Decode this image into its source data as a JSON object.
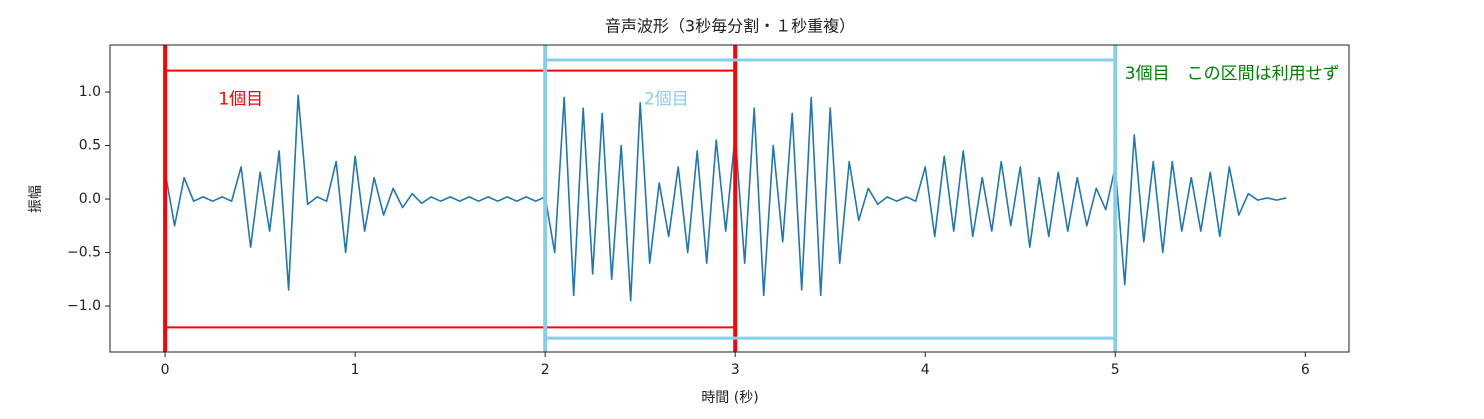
{
  "chart_data": {
    "type": "line",
    "title": "音声波形（3秒毎分割・１秒重複）",
    "x_label": "時間 (秒)",
    "y_label": "振幅",
    "x": [
      0,
      0.05,
      0.1,
      0.15,
      0.2,
      0.25,
      0.3,
      0.35,
      0.4,
      0.45,
      0.5,
      0.55,
      0.6,
      0.65,
      0.7,
      0.75,
      0.8,
      0.85,
      0.9,
      0.95,
      1,
      1.05,
      1.1,
      1.15,
      1.2,
      1.25,
      1.3,
      1.35,
      1.4,
      1.45,
      1.5,
      1.55,
      1.6,
      1.65,
      1.7,
      1.75,
      1.8,
      1.85,
      1.9,
      1.95,
      2,
      2.05,
      2.1,
      2.15,
      2.2,
      2.25,
      2.3,
      2.35,
      2.4,
      2.45,
      2.5,
      2.55,
      2.6,
      2.65,
      2.7,
      2.75,
      2.8,
      2.85,
      2.9,
      2.95,
      3,
      3.05,
      3.1,
      3.15,
      3.2,
      3.25,
      3.3,
      3.35,
      3.4,
      3.45,
      3.5,
      3.55,
      3.6,
      3.65,
      3.7,
      3.75,
      3.8,
      3.85,
      3.9,
      3.95,
      4,
      4.05,
      4.1,
      4.15,
      4.2,
      4.25,
      4.3,
      4.35,
      4.4,
      4.45,
      4.5,
      4.55,
      4.6,
      4.65,
      4.7,
      4.75,
      4.8,
      4.85,
      4.9,
      4.95,
      5,
      5.05,
      5.1,
      5.15,
      5.2,
      5.25,
      5.3,
      5.35,
      5.4,
      5.45,
      5.5,
      5.55,
      5.6,
      5.65,
      5.7,
      5.75,
      5.8,
      5.85,
      5.9
    ],
    "values": [
      0.25,
      -0.25,
      0.2,
      -0.02,
      0.02,
      -0.02,
      0.02,
      -0.02,
      0.3,
      -0.45,
      0.25,
      -0.3,
      0.45,
      -0.85,
      0.97,
      -0.05,
      0.02,
      -0.02,
      0.35,
      -0.5,
      0.4,
      -0.3,
      0.2,
      -0.15,
      0.1,
      -0.08,
      0.05,
      -0.04,
      0.02,
      -0.02,
      0.02,
      -0.02,
      0.02,
      -0.02,
      0.02,
      -0.02,
      0.02,
      -0.02,
      0.02,
      -0.02,
      0.02,
      -0.5,
      0.95,
      -0.9,
      0.85,
      -0.7,
      0.8,
      -0.75,
      0.5,
      -0.95,
      0.9,
      -0.6,
      0.15,
      -0.35,
      0.3,
      -0.5,
      0.45,
      -0.6,
      0.55,
      -0.3,
      0.6,
      -0.6,
      0.85,
      -0.9,
      0.5,
      -0.4,
      0.8,
      -0.85,
      0.95,
      -0.9,
      0.85,
      -0.6,
      0.35,
      -0.2,
      0.1,
      -0.05,
      0.02,
      -0.02,
      0.02,
      -0.02,
      0.3,
      -0.35,
      0.4,
      -0.3,
      0.45,
      -0.35,
      0.2,
      -0.3,
      0.35,
      -0.25,
      0.3,
      -0.45,
      0.2,
      -0.35,
      0.25,
      -0.3,
      0.2,
      -0.25,
      0.1,
      -0.1,
      0.3,
      -0.8,
      0.6,
      -0.4,
      0.35,
      -0.5,
      0.35,
      -0.3,
      0.2,
      -0.3,
      0.25,
      -0.35,
      0.3,
      -0.15,
      0.05,
      -0.01,
      0.01,
      -0.01,
      0.01
    ],
    "color": "#1f77b4",
    "xlim": [
      -0.29,
      6.23
    ],
    "ylim": [
      -1.43,
      1.44
    ],
    "xticks": [
      0,
      1,
      2,
      3,
      4,
      5,
      6
    ],
    "yticks": [
      {
        "value": -1,
        "label": "−1.0"
      },
      {
        "value": -0.5,
        "label": "−0.5"
      },
      {
        "value": 0,
        "label": "0.0"
      },
      {
        "value": 0.5,
        "label": "0.5"
      },
      {
        "value": 1,
        "label": "1.0"
      }
    ],
    "segments": [
      {
        "start": 0,
        "end": 3,
        "height": 1.2,
        "color": "red"
      },
      {
        "start": 2,
        "end": 5,
        "height": 1.3,
        "color": "skyblue"
      }
    ],
    "annotations": [
      {
        "text": "1個目",
        "x": 0.28,
        "y": 0.93,
        "color": "red"
      },
      {
        "text": "2個目",
        "x": 2.52,
        "y": 0.93,
        "color": "skyblue"
      },
      {
        "text": "3個目　この区間は利用せず",
        "x": 5.05,
        "y": 1.17,
        "color": "green"
      }
    ]
  }
}
